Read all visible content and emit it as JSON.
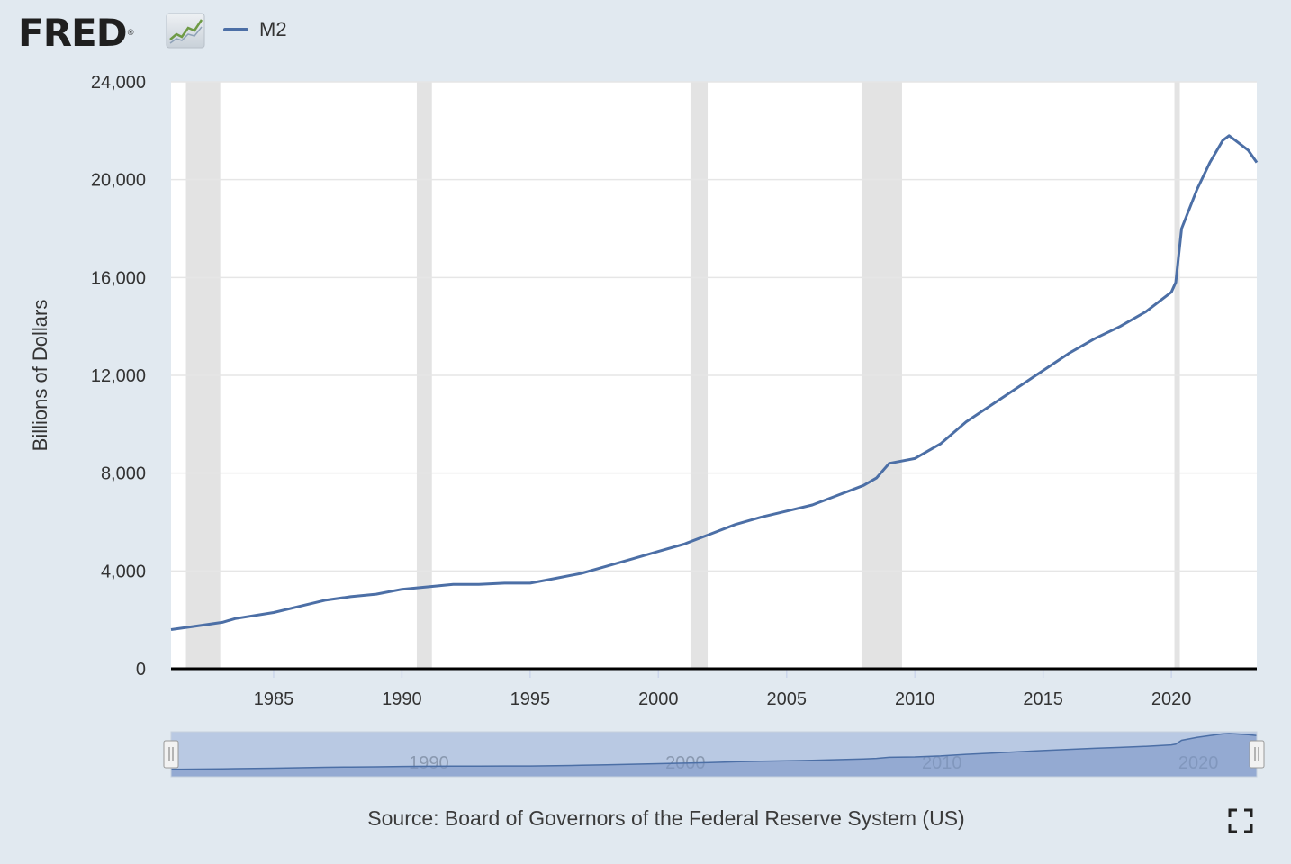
{
  "header": {
    "logo_text": "FRED",
    "logo_mark": "®",
    "logo_icon": "line-chart-icon",
    "legend_label": "M2",
    "legend_color": "#4c6fa6"
  },
  "chart_data": {
    "type": "line",
    "title": "",
    "ylabel": "Billions of Dollars",
    "xlabel": "",
    "xlim": [
      1981.0,
      2023.33
    ],
    "ylim": [
      0,
      24000
    ],
    "y_ticks": [
      0,
      4000,
      8000,
      12000,
      16000,
      20000,
      24000
    ],
    "y_tick_labels": [
      "0",
      "4,000",
      "8,000",
      "12,000",
      "16,000",
      "20,000",
      "24,000"
    ],
    "x_ticks": [
      1985,
      1990,
      1995,
      2000,
      2005,
      2010,
      2015,
      2020
    ],
    "x_tick_labels": [
      "1985",
      "1990",
      "1995",
      "2000",
      "2005",
      "2010",
      "2015",
      "2020"
    ],
    "grid": true,
    "recessions": [
      [
        1981.58,
        1982.92
      ],
      [
        1990.58,
        1991.17
      ],
      [
        2001.25,
        2001.92
      ],
      [
        2007.92,
        2009.5
      ],
      [
        2020.12,
        2020.33
      ]
    ],
    "line_color": "#4c6fa6",
    "recession_color": "#e3e3e3",
    "series": [
      {
        "name": "M2",
        "x": [
          1981.0,
          1982.0,
          1983.0,
          1983.5,
          1985.0,
          1986.0,
          1987.0,
          1988.0,
          1989.0,
          1990.0,
          1991.0,
          1992.0,
          1993.0,
          1994.0,
          1995.0,
          1996.0,
          1997.0,
          1998.0,
          1999.0,
          2000.0,
          2001.0,
          2002.0,
          2003.0,
          2004.0,
          2005.0,
          2006.0,
          2007.0,
          2008.0,
          2008.5,
          2009.0,
          2010.0,
          2011.0,
          2012.0,
          2013.0,
          2014.0,
          2015.0,
          2016.0,
          2017.0,
          2018.0,
          2019.0,
          2020.0,
          2020.17,
          2020.4,
          2021.0,
          2021.5,
          2022.0,
          2022.25,
          2022.5,
          2023.0,
          2023.33
        ],
        "y": [
          1600,
          1750,
          1900,
          2050,
          2300,
          2550,
          2800,
          2950,
          3050,
          3250,
          3350,
          3450,
          3450,
          3500,
          3500,
          3700,
          3900,
          4200,
          4500,
          4800,
          5100,
          5500,
          5900,
          6200,
          6450,
          6700,
          7100,
          7500,
          7800,
          8400,
          8600,
          9200,
          10100,
          10800,
          11500,
          12200,
          12900,
          13500,
          14000,
          14600,
          15400,
          15800,
          18000,
          19600,
          20700,
          21600,
          21800,
          21600,
          21200,
          20700
        ]
      }
    ]
  },
  "navigator": {
    "labels": [
      "1990",
      "2000",
      "2010",
      "2020"
    ],
    "label_x": [
      1990,
      2000,
      2010,
      2020
    ]
  },
  "footer": {
    "source": "Source: Board of Governors of the Federal Reserve System (US)",
    "fullscreen_icon": "fullscreen-icon"
  }
}
